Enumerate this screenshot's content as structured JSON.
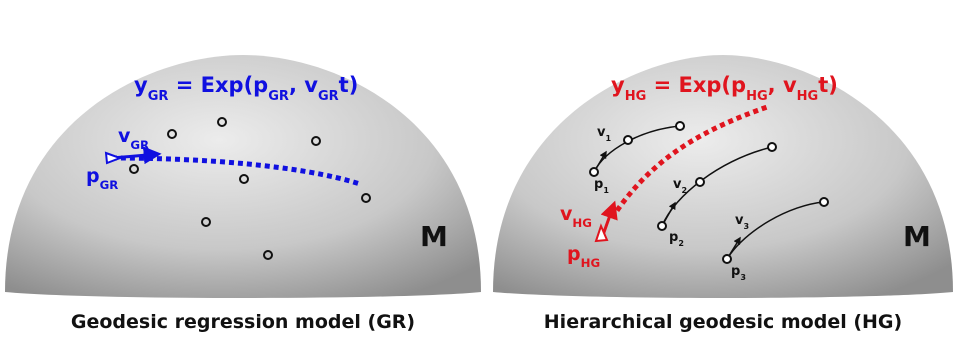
{
  "panels": [
    {
      "formula": [
        {
          "text": "y",
          "sub": "GR"
        },
        {
          "text": " = Exp("
        },
        {
          "text": "p",
          "sub": "GR"
        },
        {
          "text": ", "
        },
        {
          "text": "v",
          "sub": "GR"
        },
        {
          "text": "t)"
        }
      ],
      "labels": [
        {
          "text": "v",
          "sub": "GR"
        },
        {
          "text": "p",
          "sub": "GR"
        }
      ],
      "manifold": "M",
      "caption": "Geodesic regression model (GR)"
    },
    {
      "formula": [
        {
          "text": "y",
          "sub": "HG"
        },
        {
          "text": " = Exp("
        },
        {
          "text": "p",
          "sub": "HG"
        },
        {
          "text": ", "
        },
        {
          "text": "v",
          "sub": "HG"
        },
        {
          "text": "t)"
        }
      ],
      "labels": [
        {
          "text": "v",
          "sub": "HG"
        },
        {
          "text": "p",
          "sub": "HG"
        },
        {
          "text": "v",
          "sub": "1"
        },
        {
          "text": "p",
          "sub": "1"
        },
        {
          "text": "v",
          "sub": "2"
        },
        {
          "text": "p",
          "sub": "2"
        },
        {
          "text": "v",
          "sub": "3"
        },
        {
          "text": "p",
          "sub": "3"
        }
      ],
      "manifold": "M",
      "caption": "Hierarchical geodesic model (HG)"
    }
  ]
}
